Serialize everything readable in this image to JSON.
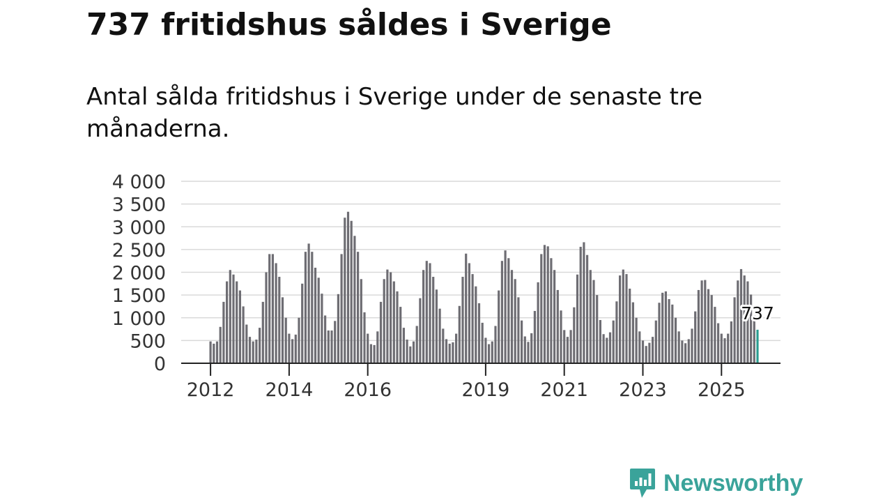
{
  "header": {
    "title": "737 fritidshus såldes i Sverige",
    "subtitle": "Antal sålda fritidshus i Sverige under de senaste tre månaderna."
  },
  "brand": {
    "name": "Newsworthy"
  },
  "colors": {
    "bar": "#6e6d73",
    "highlight": "#2a9d90",
    "grid": "#d9d9d9",
    "axis": "#222222",
    "brand": "#3aa39a"
  },
  "chart_data": {
    "type": "bar",
    "title": "737 fritidshus såldes i Sverige",
    "subtitle": "Antal sålda fritidshus i Sverige under de senaste tre månaderna.",
    "xlabel": "",
    "ylabel": "",
    "ylim": [
      0,
      4000
    ],
    "yticks": [
      0,
      500,
      1000,
      1500,
      2000,
      2500,
      3000,
      3500,
      4000
    ],
    "ytick_labels": [
      "0",
      "500",
      "1 000",
      "1 500",
      "2 000",
      "2 500",
      "3 000",
      "3 500",
      "4 000"
    ],
    "xtick_labels": [
      {
        "label": "2012",
        "index": 0
      },
      {
        "label": "2014",
        "index": 24
      },
      {
        "label": "2016",
        "index": 48
      },
      {
        "label": "2019",
        "index": 84
      },
      {
        "label": "2021",
        "index": 108
      },
      {
        "label": "2023",
        "index": 132
      },
      {
        "label": "2025",
        "index": 156
      }
    ],
    "grid": true,
    "highlight": {
      "index": 167,
      "value": 737,
      "label": "737"
    },
    "values": [
      480,
      430,
      480,
      800,
      1350,
      1800,
      2050,
      1950,
      1800,
      1600,
      1250,
      850,
      580,
      480,
      520,
      780,
      1350,
      2000,
      2400,
      2400,
      2200,
      1900,
      1450,
      1000,
      650,
      530,
      630,
      1000,
      1750,
      2450,
      2630,
      2450,
      2100,
      1880,
      1530,
      1050,
      720,
      720,
      930,
      1520,
      2400,
      3200,
      3330,
      3130,
      2800,
      2450,
      1850,
      1120,
      650,
      420,
      400,
      700,
      1350,
      1850,
      2060,
      2000,
      1800,
      1580,
      1240,
      780,
      520,
      370,
      480,
      820,
      1430,
      2050,
      2250,
      2200,
      1900,
      1620,
      1200,
      760,
      530,
      430,
      460,
      650,
      1260,
      1900,
      2410,
      2200,
      1960,
      1690,
      1320,
      890,
      560,
      420,
      480,
      820,
      1600,
      2250,
      2480,
      2310,
      2050,
      1850,
      1450,
      940,
      590,
      470,
      660,
      1150,
      1780,
      2400,
      2600,
      2570,
      2310,
      2050,
      1610,
      1160,
      730,
      580,
      730,
      1230,
      1950,
      2560,
      2660,
      2380,
      2050,
      1830,
      1500,
      950,
      640,
      560,
      680,
      940,
      1360,
      1930,
      2060,
      1960,
      1640,
      1340,
      1000,
      700,
      500,
      380,
      450,
      580,
      940,
      1330,
      1550,
      1580,
      1410,
      1290,
      1000,
      700,
      500,
      440,
      530,
      760,
      1140,
      1610,
      1820,
      1830,
      1630,
      1500,
      1240,
      880,
      650,
      550,
      650,
      920,
      1450,
      1820,
      2070,
      1930,
      1800,
      1510,
      1050,
      737
    ]
  }
}
